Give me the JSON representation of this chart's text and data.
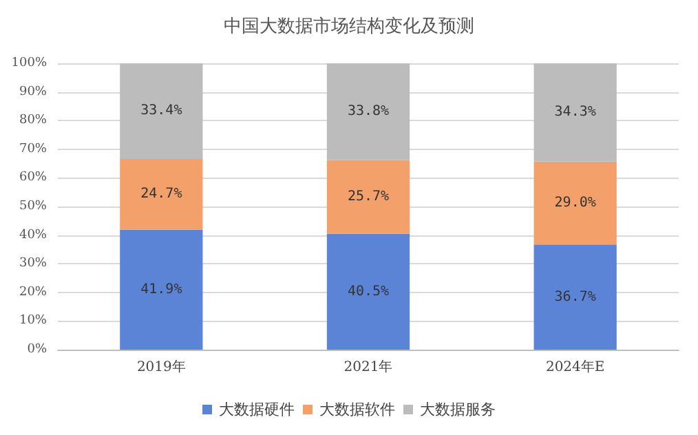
{
  "chart_data": {
    "type": "bar",
    "stacked": true,
    "title": "中国大数据市场结构变化及预测",
    "categories": [
      "2019年",
      "2021年",
      "2024年E"
    ],
    "series": [
      {
        "name": "大数据硬件",
        "color": "#5b84d6",
        "values": [
          41.9,
          40.5,
          36.7
        ],
        "value_labels": [
          "41.9%",
          "40.5%",
          "36.7%"
        ]
      },
      {
        "name": "大数据软件",
        "color": "#f3a06a",
        "values": [
          24.7,
          25.7,
          29.0
        ],
        "value_labels": [
          "24.7%",
          "25.7%",
          "29.0%"
        ]
      },
      {
        "name": "大数据服务",
        "color": "#bcbcbc",
        "values": [
          33.4,
          33.8,
          34.3
        ],
        "value_labels": [
          "33.4%",
          "33.8%",
          "34.3%"
        ]
      }
    ],
    "ylim": [
      0,
      100
    ],
    "yticks": [
      {
        "value": 0,
        "label": "0%"
      },
      {
        "value": 10,
        "label": "10%"
      },
      {
        "value": 20,
        "label": "20%"
      },
      {
        "value": 30,
        "label": "30%"
      },
      {
        "value": 40,
        "label": "40%"
      },
      {
        "value": 50,
        "label": "50%"
      },
      {
        "value": 60,
        "label": "60%"
      },
      {
        "value": 70,
        "label": "70%"
      },
      {
        "value": 80,
        "label": "80%"
      },
      {
        "value": 90,
        "label": "90%"
      },
      {
        "value": 100,
        "label": "100%"
      }
    ],
    "grid": "y",
    "legend": "bottom"
  }
}
